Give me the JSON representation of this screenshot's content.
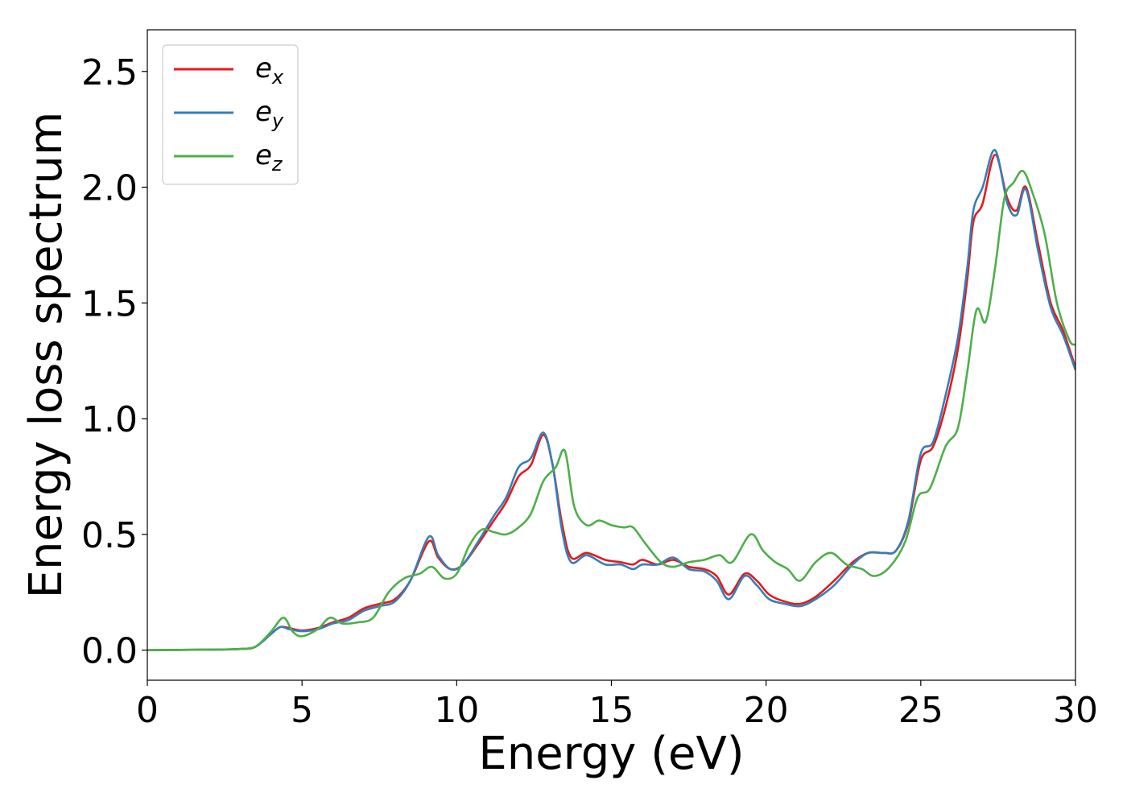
{
  "chart_data": {
    "type": "line",
    "title": "",
    "xlabel": "Energy (eV)",
    "ylabel": "Energy loss spectrum",
    "xlim": [
      0,
      30
    ],
    "ylim": [
      -0.13,
      2.68
    ],
    "xticks": [
      0,
      5,
      10,
      15,
      20,
      25,
      30
    ],
    "xtick_labels": [
      "0",
      "5",
      "10",
      "15",
      "20",
      "25",
      "30"
    ],
    "yticks": [
      0.0,
      0.5,
      1.0,
      1.5,
      2.0,
      2.5
    ],
    "ytick_labels": [
      "0.0",
      "0.5",
      "1.0",
      "1.5",
      "2.0",
      "2.5"
    ],
    "grid": false,
    "legend_position": "top-left",
    "series": [
      {
        "name": "e_x",
        "legend_base": "e",
        "legend_sub": "x",
        "color": "#e41a1c",
        "points": [
          [
            0,
            0
          ],
          [
            2,
            0.002
          ],
          [
            3,
            0.005
          ],
          [
            3.5,
            0.015
          ],
          [
            4,
            0.07
          ],
          [
            4.3,
            0.1
          ],
          [
            4.6,
            0.095
          ],
          [
            5,
            0.085
          ],
          [
            5.5,
            0.095
          ],
          [
            6,
            0.12
          ],
          [
            6.5,
            0.14
          ],
          [
            7,
            0.18
          ],
          [
            7.5,
            0.2
          ],
          [
            8,
            0.22
          ],
          [
            8.5,
            0.3
          ],
          [
            9.1,
            0.47
          ],
          [
            9.4,
            0.4
          ],
          [
            9.8,
            0.35
          ],
          [
            10.2,
            0.37
          ],
          [
            10.7,
            0.46
          ],
          [
            11.2,
            0.56
          ],
          [
            11.6,
            0.64
          ],
          [
            12,
            0.75
          ],
          [
            12.4,
            0.8
          ],
          [
            12.8,
            0.93
          ],
          [
            13.1,
            0.8
          ],
          [
            13.4,
            0.55
          ],
          [
            13.7,
            0.4
          ],
          [
            14.2,
            0.42
          ],
          [
            14.8,
            0.39
          ],
          [
            15.3,
            0.38
          ],
          [
            15.7,
            0.37
          ],
          [
            16,
            0.39
          ],
          [
            16.5,
            0.37
          ],
          [
            17,
            0.39
          ],
          [
            17.5,
            0.36
          ],
          [
            18,
            0.35
          ],
          [
            18.4,
            0.32
          ],
          [
            18.8,
            0.24
          ],
          [
            19.3,
            0.33
          ],
          [
            19.7,
            0.3
          ],
          [
            20.1,
            0.24
          ],
          [
            20.6,
            0.21
          ],
          [
            21.1,
            0.2
          ],
          [
            21.6,
            0.23
          ],
          [
            22.2,
            0.3
          ],
          [
            22.8,
            0.38
          ],
          [
            23.3,
            0.42
          ],
          [
            23.8,
            0.42
          ],
          [
            24.2,
            0.43
          ],
          [
            24.6,
            0.55
          ],
          [
            25,
            0.82
          ],
          [
            25.4,
            0.88
          ],
          [
            25.8,
            1.05
          ],
          [
            26.2,
            1.3
          ],
          [
            26.5,
            1.6
          ],
          [
            26.7,
            1.85
          ],
          [
            27,
            1.93
          ],
          [
            27.4,
            2.14
          ],
          [
            27.8,
            1.95
          ],
          [
            28.1,
            1.9
          ],
          [
            28.4,
            2.0
          ],
          [
            28.8,
            1.75
          ],
          [
            29.2,
            1.5
          ],
          [
            29.6,
            1.38
          ],
          [
            30,
            1.22
          ]
        ]
      },
      {
        "name": "e_y",
        "legend_base": "e",
        "legend_sub": "y",
        "color": "#377eb8",
        "points": [
          [
            0,
            0
          ],
          [
            2,
            0.002
          ],
          [
            3,
            0.005
          ],
          [
            3.5,
            0.015
          ],
          [
            4,
            0.07
          ],
          [
            4.3,
            0.1
          ],
          [
            4.6,
            0.09
          ],
          [
            5,
            0.082
          ],
          [
            5.5,
            0.09
          ],
          [
            6,
            0.115
          ],
          [
            6.5,
            0.13
          ],
          [
            7,
            0.17
          ],
          [
            7.5,
            0.19
          ],
          [
            8,
            0.21
          ],
          [
            8.5,
            0.3
          ],
          [
            9.1,
            0.49
          ],
          [
            9.4,
            0.41
          ],
          [
            9.8,
            0.35
          ],
          [
            10.2,
            0.37
          ],
          [
            10.7,
            0.47
          ],
          [
            11.2,
            0.58
          ],
          [
            11.6,
            0.66
          ],
          [
            12,
            0.79
          ],
          [
            12.4,
            0.83
          ],
          [
            12.8,
            0.94
          ],
          [
            13.1,
            0.8
          ],
          [
            13.4,
            0.52
          ],
          [
            13.7,
            0.38
          ],
          [
            14.2,
            0.41
          ],
          [
            14.8,
            0.37
          ],
          [
            15.3,
            0.37
          ],
          [
            15.7,
            0.35
          ],
          [
            16,
            0.37
          ],
          [
            16.5,
            0.37
          ],
          [
            17,
            0.4
          ],
          [
            17.5,
            0.35
          ],
          [
            18,
            0.34
          ],
          [
            18.4,
            0.3
          ],
          [
            18.8,
            0.22
          ],
          [
            19.3,
            0.32
          ],
          [
            19.7,
            0.28
          ],
          [
            20.1,
            0.22
          ],
          [
            20.6,
            0.2
          ],
          [
            21.1,
            0.19
          ],
          [
            21.6,
            0.22
          ],
          [
            22.2,
            0.28
          ],
          [
            22.8,
            0.37
          ],
          [
            23.3,
            0.42
          ],
          [
            23.8,
            0.42
          ],
          [
            24.2,
            0.43
          ],
          [
            24.6,
            0.56
          ],
          [
            25,
            0.85
          ],
          [
            25.4,
            0.9
          ],
          [
            25.8,
            1.1
          ],
          [
            26.2,
            1.35
          ],
          [
            26.5,
            1.65
          ],
          [
            26.7,
            1.9
          ],
          [
            27,
            2.0
          ],
          [
            27.4,
            2.16
          ],
          [
            27.8,
            1.93
          ],
          [
            28.1,
            1.88
          ],
          [
            28.4,
            1.99
          ],
          [
            28.8,
            1.72
          ],
          [
            29.2,
            1.48
          ],
          [
            29.6,
            1.36
          ],
          [
            30,
            1.21
          ]
        ]
      },
      {
        "name": "e_z",
        "legend_base": "e",
        "legend_sub": "z",
        "color": "#4daf4a",
        "points": [
          [
            0,
            0
          ],
          [
            2,
            0.002
          ],
          [
            3,
            0.005
          ],
          [
            3.5,
            0.015
          ],
          [
            4,
            0.08
          ],
          [
            4.4,
            0.14
          ],
          [
            4.7,
            0.08
          ],
          [
            5,
            0.06
          ],
          [
            5.5,
            0.09
          ],
          [
            5.9,
            0.14
          ],
          [
            6.3,
            0.115
          ],
          [
            6.8,
            0.12
          ],
          [
            7.3,
            0.14
          ],
          [
            7.8,
            0.25
          ],
          [
            8.3,
            0.31
          ],
          [
            8.8,
            0.33
          ],
          [
            9.2,
            0.36
          ],
          [
            9.6,
            0.31
          ],
          [
            10,
            0.33
          ],
          [
            10.4,
            0.45
          ],
          [
            10.8,
            0.52
          ],
          [
            11.2,
            0.51
          ],
          [
            11.6,
            0.5
          ],
          [
            12,
            0.53
          ],
          [
            12.4,
            0.59
          ],
          [
            12.8,
            0.73
          ],
          [
            13.2,
            0.79
          ],
          [
            13.5,
            0.86
          ],
          [
            13.8,
            0.62
          ],
          [
            14.2,
            0.54
          ],
          [
            14.6,
            0.56
          ],
          [
            15,
            0.54
          ],
          [
            15.4,
            0.53
          ],
          [
            15.7,
            0.53
          ],
          [
            16.1,
            0.46
          ],
          [
            16.6,
            0.38
          ],
          [
            17,
            0.36
          ],
          [
            17.5,
            0.38
          ],
          [
            18,
            0.39
          ],
          [
            18.5,
            0.41
          ],
          [
            18.9,
            0.38
          ],
          [
            19.5,
            0.5
          ],
          [
            19.9,
            0.43
          ],
          [
            20.3,
            0.38
          ],
          [
            20.7,
            0.35
          ],
          [
            21.1,
            0.3
          ],
          [
            21.6,
            0.38
          ],
          [
            22.1,
            0.42
          ],
          [
            22.6,
            0.37
          ],
          [
            23.1,
            0.35
          ],
          [
            23.5,
            0.32
          ],
          [
            24,
            0.36
          ],
          [
            24.5,
            0.47
          ],
          [
            24.9,
            0.66
          ],
          [
            25.3,
            0.7
          ],
          [
            25.8,
            0.88
          ],
          [
            26.2,
            0.96
          ],
          [
            26.5,
            1.2
          ],
          [
            26.8,
            1.47
          ],
          [
            27.1,
            1.42
          ],
          [
            27.4,
            1.65
          ],
          [
            27.7,
            1.95
          ],
          [
            28,
            2.02
          ],
          [
            28.3,
            2.07
          ],
          [
            28.6,
            1.98
          ],
          [
            29,
            1.8
          ],
          [
            29.4,
            1.5
          ],
          [
            29.8,
            1.34
          ],
          [
            30,
            1.32
          ]
        ]
      }
    ]
  }
}
